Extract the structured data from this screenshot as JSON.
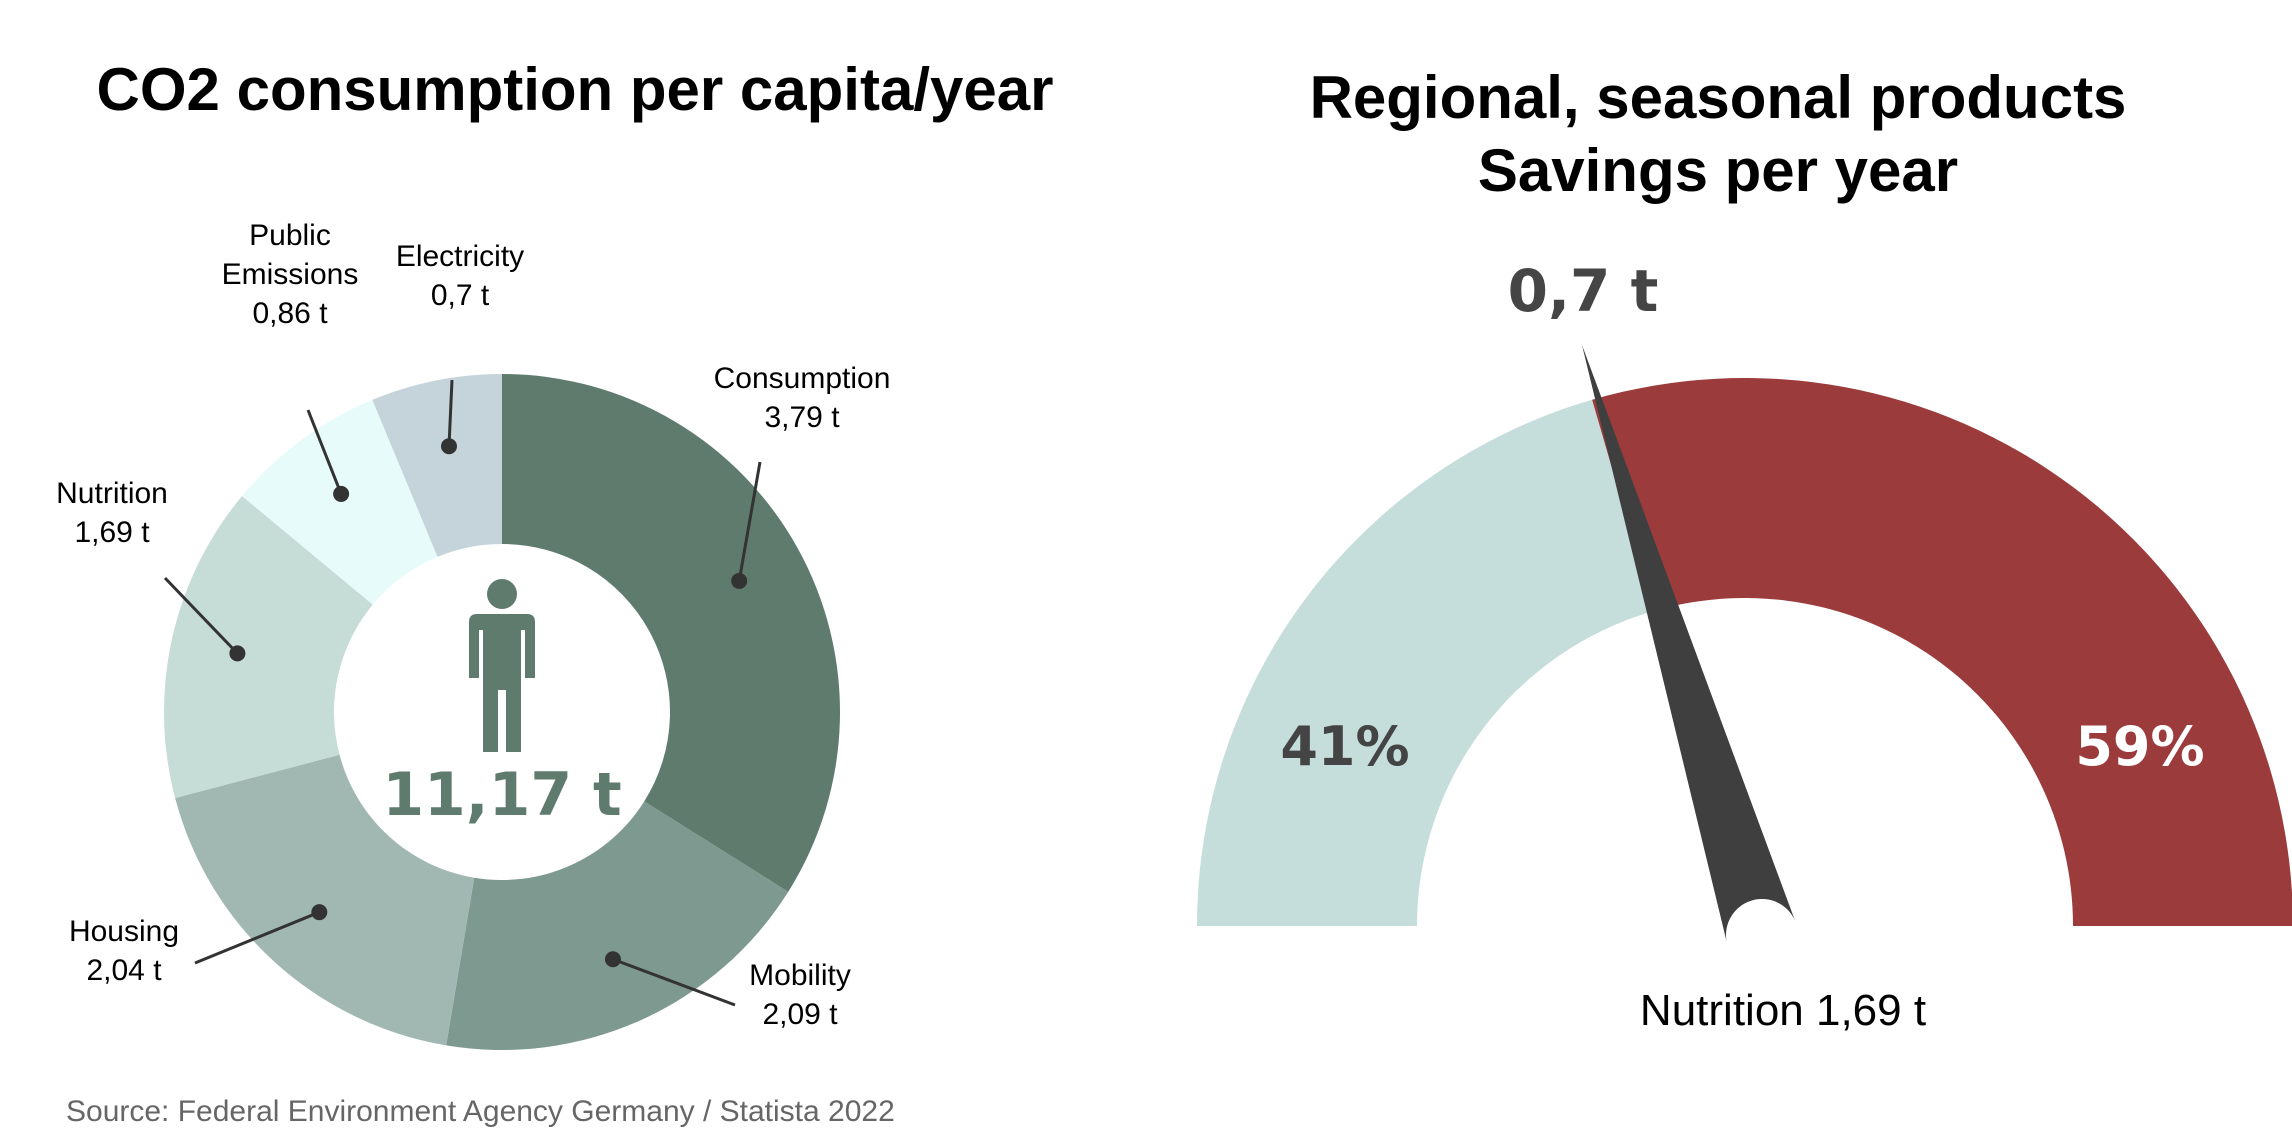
{
  "chart_data": [
    {
      "type": "donut",
      "title": "CO2 consumption per capita/year",
      "center_label": "11,17 t",
      "center_icon": "person-icon",
      "slices": [
        {
          "label": "Consumption",
          "value_label": "3,79 t",
          "value": 3.79,
          "color": "#5f7b6e"
        },
        {
          "label": "Mobility",
          "value_label": "2,09 t",
          "value": 2.09,
          "color": "#7e9990"
        },
        {
          "label": "Housing",
          "value_label": "2,04 t",
          "value": 2.04,
          "color": "#a1b8b2"
        },
        {
          "label": "Nutrition",
          "value_label": "1,69 t",
          "value": 1.69,
          "color": "#c6dcd7"
        },
        {
          "label": "Public Emissions",
          "label_lines": [
            "Public",
            "Emissions"
          ],
          "value_label": "0,86 t",
          "value": 0.86,
          "color": "#e8fbfb"
        },
        {
          "label": "Electricity",
          "value_label": "0,7 t",
          "value": 0.7,
          "color": "#c4d4da"
        }
      ],
      "source": "Source: Federal Environment Agency Germany / Statista 2022"
    },
    {
      "type": "gauge",
      "title_lines": [
        "Regional, seasonal products",
        "Savings per year"
      ],
      "segments": [
        {
          "label": "41%",
          "percent": 41,
          "color": "#c5dedb",
          "text_color": "#444444"
        },
        {
          "label": "59%",
          "percent": 59,
          "color": "#9b3b3c",
          "text_color": "#ffffff"
        }
      ],
      "needle_percent": 41,
      "needle_color": "#3f3f3f",
      "value_label": "0,7 t",
      "caption": "Nutrition 1,69 t"
    }
  ]
}
